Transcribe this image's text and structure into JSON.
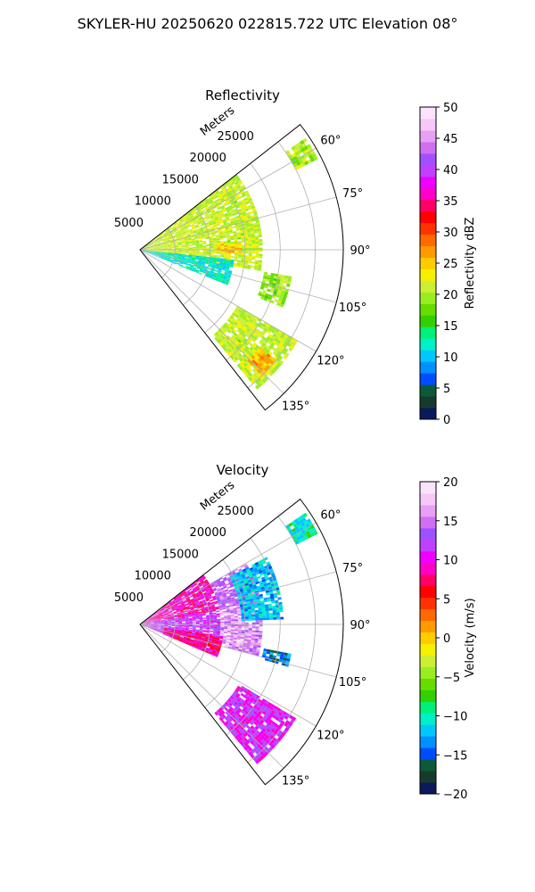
{
  "figure": {
    "title": "SKYLER-HU  20250620  022815.722 UTC Elevation 08°"
  },
  "chart_data": [
    {
      "type": "heatmap",
      "projection": "polar-sector",
      "title": "Reflectivity",
      "r_label": "Meters",
      "theta_range_deg": [
        52,
        142
      ],
      "r_range": [
        0,
        29000
      ],
      "theta_ticks": [
        60,
        75,
        90,
        105,
        120,
        135
      ],
      "theta_tick_labels": [
        "60°",
        "75°",
        "90°",
        "105°",
        "120°",
        "135°"
      ],
      "r_ticks": [
        5000,
        10000,
        15000,
        20000,
        25000
      ],
      "r_tick_labels": [
        "5000",
        "10000",
        "15000",
        "20000",
        "25000"
      ],
      "grid": true,
      "colorbar": {
        "label": "Reflectivity dBZ",
        "range": [
          0,
          50
        ],
        "ticks": [
          0,
          5,
          10,
          15,
          20,
          25,
          30,
          35,
          40,
          45,
          50
        ],
        "tick_labels": [
          "0",
          "5",
          "10",
          "15",
          "20",
          "25",
          "30",
          "35",
          "40",
          "45",
          "50"
        ],
        "colors": [
          "#0b1a5c",
          "#173a2e",
          "#0d5a3a",
          "#004cff",
          "#0090ff",
          "#00c8ff",
          "#00f0c8",
          "#00f07a",
          "#33d000",
          "#66dd00",
          "#99ee22",
          "#ccee33",
          "#f5f000",
          "#ffcc00",
          "#ff9a00",
          "#ff6a00",
          "#ff3300",
          "#ff0000",
          "#ff0066",
          "#ff00c8",
          "#ee00ff",
          "#c040ff",
          "#a050ff",
          "#d070f0",
          "#e8a0f5",
          "#f5c8f8",
          "#fbe4fb"
        ]
      },
      "regions": [
        {
          "theta": [
            52,
            100
          ],
          "r": [
            0,
            17500
          ],
          "value": 21
        },
        {
          "theta": [
            86,
            92
          ],
          "r": [
            11000,
            14500
          ],
          "value": 25
        },
        {
          "theta": [
            96,
            112
          ],
          "r": [
            0,
            13500
          ],
          "value": 12
        },
        {
          "theta": [
            56,
            63
          ],
          "r": [
            25000,
            28500
          ],
          "value": 20
        },
        {
          "theta": [
            100,
            112
          ],
          "r": [
            18000,
            22000
          ],
          "value": 19
        },
        {
          "theta": [
            120,
            140
          ],
          "r": [
            16000,
            26000
          ],
          "value": 21
        },
        {
          "theta": [
            129,
            136
          ],
          "r": [
            22000,
            25000
          ],
          "value": 26
        }
      ]
    },
    {
      "type": "heatmap",
      "projection": "polar-sector",
      "title": "Velocity",
      "r_label": "Meters",
      "theta_range_deg": [
        52,
        142
      ],
      "r_range": [
        0,
        29000
      ],
      "theta_ticks": [
        60,
        75,
        90,
        105,
        120,
        135
      ],
      "theta_tick_labels": [
        "60°",
        "75°",
        "90°",
        "105°",
        "120°",
        "135°"
      ],
      "r_ticks": [
        5000,
        10000,
        15000,
        20000,
        25000
      ],
      "r_tick_labels": [
        "5000",
        "10000",
        "15000",
        "20000",
        "25000"
      ],
      "grid": true,
      "colorbar": {
        "label": "Velocity (m/s)",
        "range": [
          -20,
          20
        ],
        "ticks": [
          -20,
          -15,
          -10,
          -5,
          0,
          5,
          10,
          15,
          20
        ],
        "tick_labels": [
          "−20",
          "−15",
          "−10",
          "−5",
          "0",
          "5",
          "10",
          "15",
          "20"
        ],
        "colors": [
          "#0b1a5c",
          "#173a2e",
          "#0d5a3a",
          "#004cff",
          "#0090ff",
          "#00c8ff",
          "#00f0c8",
          "#00f07a",
          "#33d000",
          "#66dd00",
          "#99ee22",
          "#ccee33",
          "#f5f000",
          "#ffcc00",
          "#ff9a00",
          "#ff6a00",
          "#ff3300",
          "#ff0000",
          "#ff0066",
          "#ff00c8",
          "#ee00ff",
          "#c040ff",
          "#a050ff",
          "#d070f0",
          "#e8a0f5",
          "#f5c8f8",
          "#fbe4fb"
        ]
      },
      "regions": [
        {
          "theta": [
            52,
            80
          ],
          "r": [
            0,
            11500
          ],
          "value": 9
        },
        {
          "theta": [
            80,
            112
          ],
          "r": [
            0,
            11500
          ],
          "value": 12
        },
        {
          "theta": [
            60,
            80
          ],
          "r": [
            11500,
            17500
          ],
          "value": 14
        },
        {
          "theta": [
            80,
            105
          ],
          "r": [
            11500,
            17500
          ],
          "value": 16
        },
        {
          "theta": [
            62,
            88
          ],
          "r": [
            14500,
            20500
          ],
          "value": -12
        },
        {
          "theta": [
            98,
            113
          ],
          "r": [
            3500,
            12000
          ],
          "value": 8
        },
        {
          "theta": [
            56,
            63
          ],
          "r": [
            25000,
            28500
          ],
          "value": -10
        },
        {
          "theta": [
            101,
            106
          ],
          "r": [
            18000,
            22000
          ],
          "value": -14
        },
        {
          "theta": [
            121,
            140
          ],
          "r": [
            16500,
            26000
          ],
          "value": 11
        }
      ]
    }
  ]
}
